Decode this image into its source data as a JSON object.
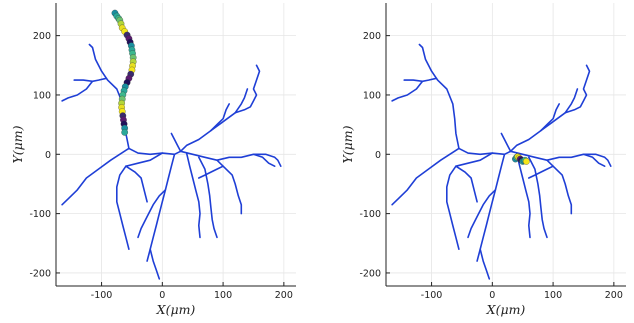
{
  "chart_data": [
    {
      "type": "scatter",
      "panel": "left",
      "title": "",
      "xlabel": "X(μm)",
      "ylabel": "Y(μm)",
      "xlim": [
        -175,
        220
      ],
      "ylim": [
        -222,
        255
      ],
      "xticks": [
        -100,
        0,
        100,
        200
      ],
      "yticks": [
        -200,
        -100,
        0,
        100,
        200
      ],
      "grid": true,
      "series": [
        {
          "role": "dendrite-tree",
          "color": "#1f3fd6",
          "branches": [
            [
              [
                -55,
                10
              ],
              [
                -85,
                -10
              ],
              [
                -105,
                -25
              ],
              [
                -125,
                -40
              ],
              [
                -140,
                -60
              ],
              [
                -155,
                -75
              ],
              [
                -165,
                -85
              ]
            ],
            [
              [
                -55,
                10
              ],
              [
                -60,
                35
              ],
              [
                -62,
                60
              ],
              [
                -65,
                85
              ],
              [
                -75,
                110
              ],
              [
                -90,
                125
              ],
              [
                -100,
                140
              ],
              [
                -110,
                160
              ],
              [
                -115,
                180
              ],
              [
                -120,
                185
              ]
            ],
            [
              [
                -92,
                128
              ],
              [
                -105,
                125
              ],
              [
                -115,
                123
              ],
              [
                -130,
                125
              ],
              [
                -145,
                125
              ]
            ],
            [
              [
                -115,
                123
              ],
              [
                -125,
                110
              ],
              [
                -140,
                100
              ],
              [
                -155,
                95
              ],
              [
                -165,
                90
              ]
            ],
            [
              [
                -55,
                10
              ],
              [
                -40,
                2
              ],
              [
                -20,
                0
              ],
              [
                0,
                2
              ],
              [
                20,
                0
              ],
              [
                30,
                5
              ]
            ],
            [
              [
                30,
                5
              ],
              [
                40,
                15
              ],
              [
                60,
                25
              ],
              [
                80,
                40
              ],
              [
                100,
                55
              ],
              [
                120,
                70
              ],
              [
                130,
                85
              ],
              [
                135,
                95
              ],
              [
                140,
                110
              ]
            ],
            [
              [
                80,
                40
              ],
              [
                90,
                50
              ],
              [
                100,
                60
              ],
              [
                105,
                75
              ],
              [
                110,
                85
              ]
            ],
            [
              [
                120,
                70
              ],
              [
                135,
                75
              ],
              [
                145,
                80
              ],
              [
                150,
                90
              ],
              [
                155,
                100
              ],
              [
                150,
                110
              ],
              [
                155,
                125
              ],
              [
                160,
                140
              ],
              [
                155,
                150
              ]
            ],
            [
              [
                30,
                5
              ],
              [
                25,
                15
              ],
              [
                20,
                25
              ],
              [
                15,
                35
              ]
            ],
            [
              [
                30,
                5
              ],
              [
                50,
                0
              ],
              [
                70,
                -5
              ],
              [
                90,
                -10
              ],
              [
                110,
                -5
              ],
              [
                130,
                -5
              ],
              [
                150,
                0
              ],
              [
                170,
                0
              ],
              [
                185,
                -5
              ],
              [
                190,
                -10
              ],
              [
                195,
                -20
              ]
            ],
            [
              [
                150,
                0
              ],
              [
                165,
                -5
              ],
              [
                175,
                -15
              ],
              [
                185,
                -20
              ]
            ],
            [
              [
                90,
                -10
              ],
              [
                100,
                -20
              ],
              [
                115,
                -35
              ],
              [
                120,
                -50
              ],
              [
                125,
                -70
              ],
              [
                130,
                -85
              ],
              [
                130,
                -100
              ]
            ],
            [
              [
                100,
                -20
              ],
              [
                90,
                -25
              ],
              [
                80,
                -30
              ],
              [
                70,
                -35
              ],
              [
                60,
                -40
              ]
            ],
            [
              [
                60,
                -5
              ],
              [
                70,
                -25
              ],
              [
                75,
                -50
              ],
              [
                78,
                -70
              ],
              [
                80,
                -90
              ],
              [
                82,
                -110
              ],
              [
                85,
                -125
              ],
              [
                90,
                -140
              ]
            ],
            [
              [
                40,
                2
              ],
              [
                45,
                -20
              ],
              [
                50,
                -40
              ],
              [
                55,
                -60
              ],
              [
                60,
                -80
              ],
              [
                62,
                -100
              ],
              [
                60,
                -120
              ],
              [
                62,
                -140
              ]
            ],
            [
              [
                20,
                0
              ],
              [
                15,
                -20
              ],
              [
                10,
                -40
              ],
              [
                5,
                -60
              ],
              [
                0,
                -80
              ],
              [
                -5,
                -100
              ],
              [
                -10,
                -120
              ],
              [
                -15,
                -140
              ],
              [
                -20,
                -160
              ],
              [
                -25,
                -180
              ]
            ],
            [
              [
                5,
                -60
              ],
              [
                -5,
                -70
              ],
              [
                -15,
                -85
              ],
              [
                -25,
                -105
              ],
              [
                -35,
                -125
              ],
              [
                -40,
                -140
              ]
            ],
            [
              [
                -20,
                -160
              ],
              [
                -15,
                -180
              ],
              [
                -10,
                -195
              ],
              [
                -5,
                -210
              ]
            ],
            [
              [
                0,
                2
              ],
              [
                -20,
                -10
              ],
              [
                -40,
                -15
              ],
              [
                -60,
                -20
              ],
              [
                -70,
                -35
              ],
              [
                -75,
                -55
              ],
              [
                -75,
                -80
              ],
              [
                -70,
                -100
              ],
              [
                -65,
                -120
              ],
              [
                -60,
                -140
              ],
              [
                -55,
                -160
              ]
            ],
            [
              [
                -60,
                -20
              ],
              [
                -45,
                -30
              ],
              [
                -35,
                -40
              ],
              [
                -30,
                -60
              ],
              [
                -25,
                -80
              ]
            ]
          ]
        },
        {
          "role": "highlighted-segment",
          "colors": [
            "#1a8fa0",
            "#2aa89a",
            "#3cb88e",
            "#6cc270",
            "#b3d63a",
            "#e8e020",
            "#f5e61a",
            "#3a2a6e",
            "#5a1a70",
            "#20105a"
          ],
          "points": [
            [
              -78,
              238
            ],
            [
              -75,
              233
            ],
            [
              -72,
              229
            ],
            [
              -70,
              226
            ],
            [
              -68,
              220
            ],
            [
              -66,
              213
            ],
            [
              -62,
              207
            ],
            [
              -58,
              201
            ],
            [
              -55,
              195
            ],
            [
              -53,
              189
            ],
            [
              -51,
              183
            ],
            [
              -50,
              176
            ],
            [
              -49,
              170
            ],
            [
              -48,
              163
            ],
            [
              -48,
              156
            ],
            [
              -49,
              149
            ],
            [
              -50,
              142
            ],
            [
              -52,
              135
            ],
            [
              -55,
              128
            ],
            [
              -58,
              121
            ],
            [
              -61,
              114
            ],
            [
              -63,
              107
            ],
            [
              -65,
              100
            ],
            [
              -66,
              93
            ],
            [
              -67,
              86
            ],
            [
              -67,
              79
            ],
            [
              -66,
              72
            ],
            [
              -65,
              65
            ],
            [
              -64,
              58
            ],
            [
              -63,
              51
            ],
            [
              -62,
              44
            ],
            [
              -62,
              37
            ]
          ]
        }
      ]
    },
    {
      "type": "scatter",
      "panel": "right",
      "title": "",
      "xlabel": "X(μm)",
      "ylabel": "Y(μm)",
      "xlim": [
        -175,
        220
      ],
      "ylim": [
        -222,
        255
      ],
      "xticks": [
        -100,
        0,
        100,
        200
      ],
      "yticks": [
        -200,
        -100,
        0,
        100,
        200
      ],
      "grid": true,
      "series": [
        {
          "role": "dendrite-tree",
          "color": "#1f3fd6",
          "branches": "same-as-left"
        },
        {
          "role": "highlighted-segment",
          "colors": [
            "#1a8fa0",
            "#3cb88e",
            "#f5e61a",
            "#e8e020",
            "#5a1a70",
            "#20105a",
            "#2aa89a"
          ],
          "points": [
            [
              38,
              -8
            ],
            [
              40,
              -5
            ],
            [
              42,
              -4
            ],
            [
              44,
              -6
            ],
            [
              46,
              -8
            ],
            [
              48,
              -10
            ],
            [
              50,
              -12
            ],
            [
              52,
              -11
            ],
            [
              54,
              -10
            ],
            [
              56,
              -12
            ]
          ]
        }
      ]
    }
  ]
}
